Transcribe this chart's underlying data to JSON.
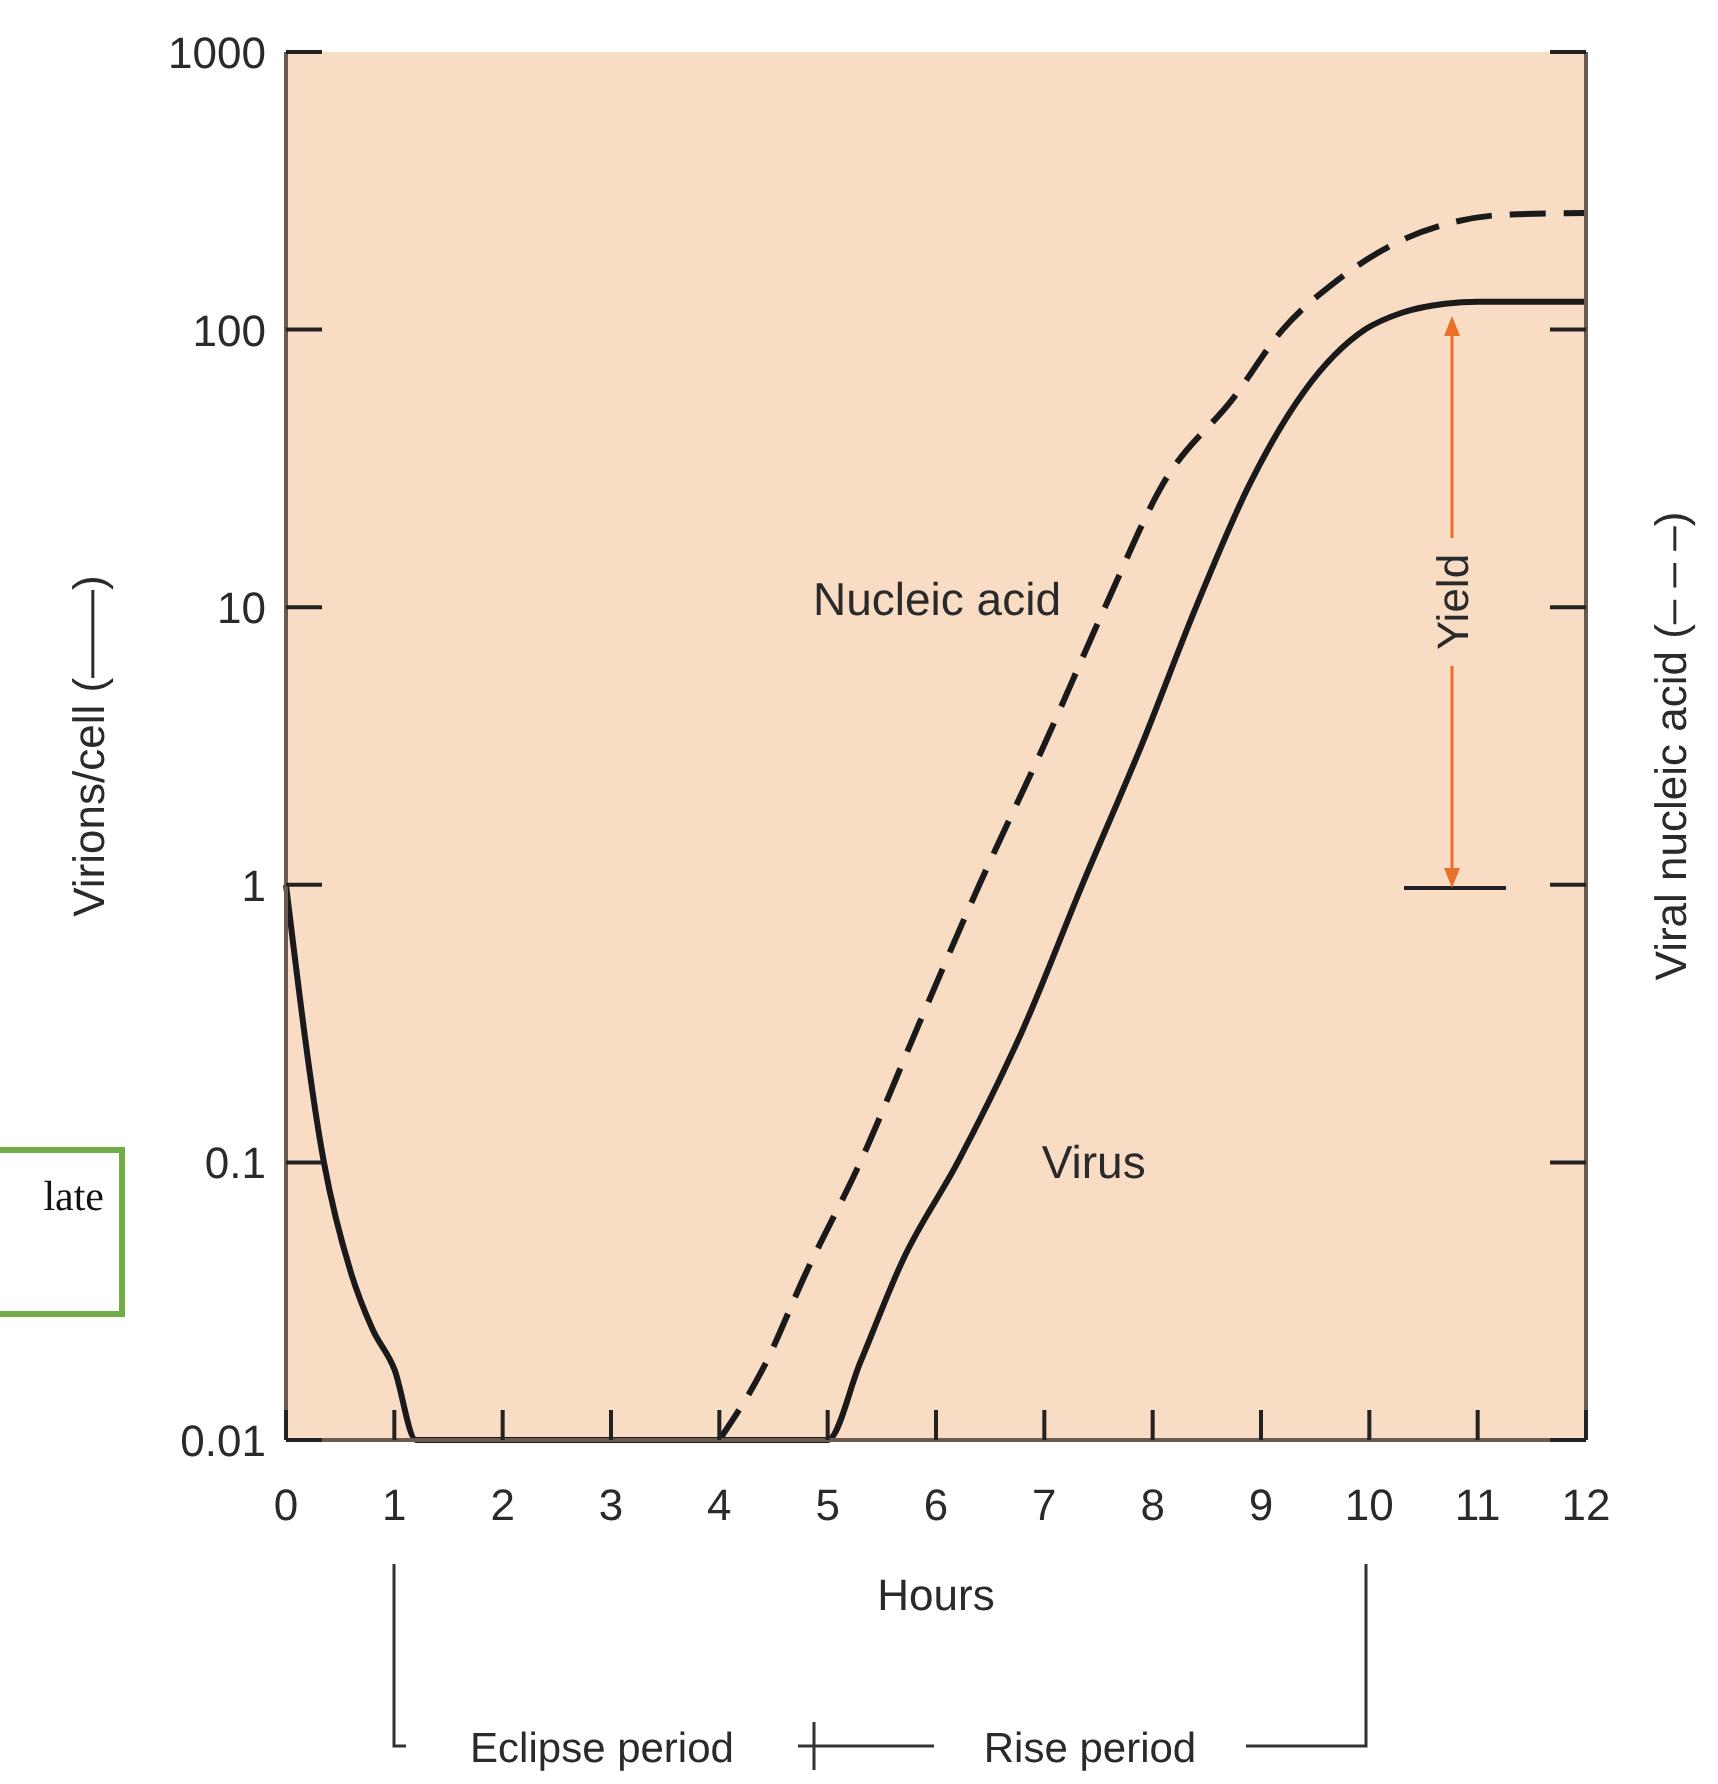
{
  "chart_data": {
    "type": "line",
    "xlabel": "Hours",
    "ylabel": "Virions/cell (——)",
    "y2label": "Viral nucleic acid (– – –)",
    "log": "y",
    "xlim": [
      0,
      12
    ],
    "xticks": [
      0,
      1,
      2,
      3,
      4,
      5,
      6,
      7,
      8,
      9,
      10,
      11,
      12
    ],
    "ylim": [
      0.01,
      1000
    ],
    "yticks": [
      0.01,
      0.1,
      1,
      10,
      100,
      1000
    ],
    "grid": false,
    "series": [
      {
        "name": "Virus",
        "color": "#1a1a1a",
        "line_style": "solid",
        "x": [
          0,
          0.35,
          0.6,
          0.8,
          1.0,
          1.2,
          5,
          5.3,
          5.7,
          6.2,
          6.8,
          7.35,
          7.9,
          8.4,
          8.9,
          9.4,
          9.96,
          10.3,
          10.7,
          11,
          12
        ],
        "values": [
          1,
          0.1,
          0.04,
          0.025,
          0.018,
          0.01,
          0.01,
          0.019,
          0.045,
          0.1,
          0.3,
          1,
          3.2,
          10,
          28,
          60,
          100,
          115,
          124,
          126,
          126
        ]
      },
      {
        "name": "Nucleic acid",
        "color": "#1a1a1a",
        "line_style": "dashed",
        "x": [
          4,
          4.4,
          4.8,
          5.3,
          5.85,
          6.4,
          7,
          7.56,
          8.1,
          8.75,
          9.2,
          9.7,
          10.3,
          10.8,
          11.3,
          12
        ],
        "values": [
          0.01,
          0.018,
          0.04,
          0.1,
          0.32,
          1,
          3.2,
          10,
          28,
          57,
          100,
          150,
          210,
          245,
          260,
          263
        ]
      }
    ],
    "annotations": [
      "late",
      "Eclipse period",
      "Rise period",
      "Yield"
    ]
  }
}
